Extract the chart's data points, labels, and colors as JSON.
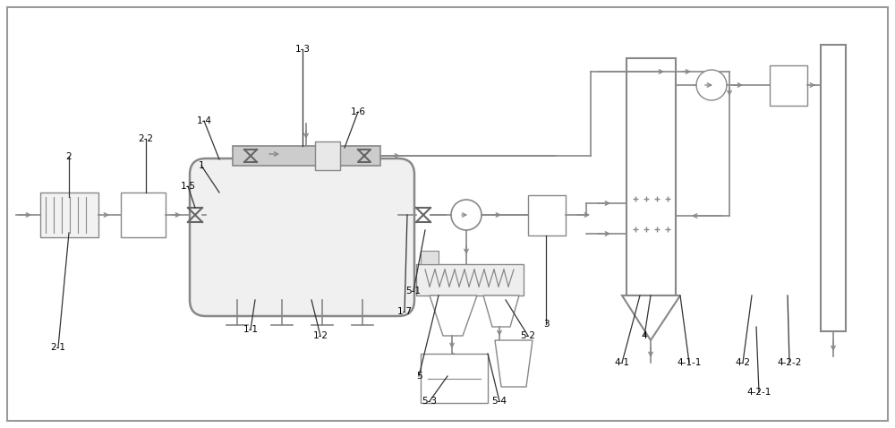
{
  "bg_color": "#ffffff",
  "border_color": "#999999",
  "line_color": "#888888",
  "dark_line": "#666666",
  "label_color": "#000000",
  "fig_width": 10.0,
  "fig_height": 4.78
}
